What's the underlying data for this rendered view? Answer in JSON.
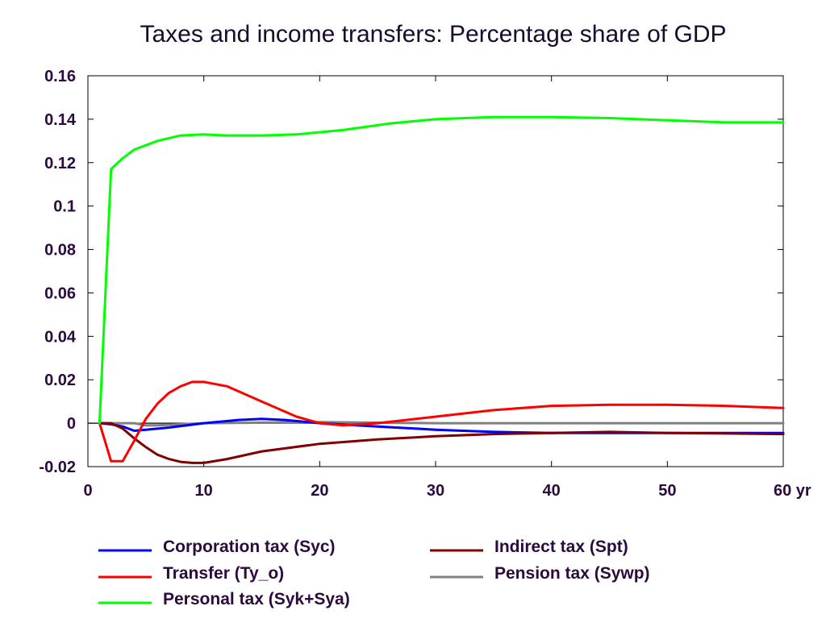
{
  "chart_data": {
    "type": "line",
    "title": "Taxes and income transfers: Percentage share of GDP",
    "xlabel": "",
    "ylabel": "",
    "x_unit_label": "yr",
    "xlim": [
      0,
      60
    ],
    "ylim": [
      -0.02,
      0.16
    ],
    "x_ticks": [
      0,
      10,
      20,
      30,
      40,
      50,
      60
    ],
    "x_tick_labels": [
      "0",
      "10",
      "20",
      "30",
      "40",
      "50",
      "60 yr"
    ],
    "y_ticks": [
      -0.02,
      0,
      0.02,
      0.04,
      0.06,
      0.08,
      0.1,
      0.12,
      0.14,
      0.16
    ],
    "y_tick_labels": [
      "-0.02",
      "0",
      "0.02",
      "0.04",
      "0.06",
      "0.08",
      "0.1",
      "0.12",
      "0.14",
      "0.16"
    ],
    "grid": false,
    "legend_position": "bottom",
    "zero_line": true,
    "series": [
      {
        "name": "Corporation tax (Syc)",
        "color": "#0000ff",
        "points": [
          [
            1,
            0
          ],
          [
            2,
            -0.0005
          ],
          [
            3,
            -0.0015
          ],
          [
            4,
            -0.0035
          ],
          [
            5,
            -0.003
          ],
          [
            7,
            -0.002
          ],
          [
            10,
            0
          ],
          [
            13,
            0.0015
          ],
          [
            15,
            0.002
          ],
          [
            17,
            0.0015
          ],
          [
            20,
            0
          ],
          [
            25,
            -0.0015
          ],
          [
            30,
            -0.003
          ],
          [
            35,
            -0.004
          ],
          [
            40,
            -0.0045
          ],
          [
            50,
            -0.0045
          ],
          [
            60,
            -0.0045
          ]
        ]
      },
      {
        "name": "Transfer (Ty_o)",
        "color": "#ff0000",
        "points": [
          [
            1,
            0
          ],
          [
            2,
            -0.0175
          ],
          [
            3,
            -0.0175
          ],
          [
            4,
            -0.008
          ],
          [
            5,
            0.002
          ],
          [
            6,
            0.009
          ],
          [
            7,
            0.014
          ],
          [
            8,
            0.017
          ],
          [
            9,
            0.019
          ],
          [
            10,
            0.019
          ],
          [
            12,
            0.017
          ],
          [
            15,
            0.01
          ],
          [
            18,
            0.003
          ],
          [
            20,
            0
          ],
          [
            22,
            -0.001
          ],
          [
            25,
            0
          ],
          [
            30,
            0.003
          ],
          [
            35,
            0.006
          ],
          [
            40,
            0.008
          ],
          [
            45,
            0.0085
          ],
          [
            50,
            0.0085
          ],
          [
            55,
            0.008
          ],
          [
            60,
            0.007
          ]
        ]
      },
      {
        "name": "Personal tax (Syk+Sya)",
        "color": "#00ff00",
        "points": [
          [
            1,
            0
          ],
          [
            2,
            0.117
          ],
          [
            3,
            0.122
          ],
          [
            4,
            0.126
          ],
          [
            6,
            0.13
          ],
          [
            8,
            0.1325
          ],
          [
            10,
            0.133
          ],
          [
            12,
            0.1325
          ],
          [
            15,
            0.1325
          ],
          [
            18,
            0.133
          ],
          [
            22,
            0.135
          ],
          [
            26,
            0.138
          ],
          [
            30,
            0.14
          ],
          [
            35,
            0.141
          ],
          [
            40,
            0.141
          ],
          [
            45,
            0.1405
          ],
          [
            50,
            0.1395
          ],
          [
            55,
            0.1385
          ],
          [
            60,
            0.1385
          ]
        ]
      },
      {
        "name": "Indirect tax (Spt)",
        "color": "#800000",
        "points": [
          [
            1,
            0
          ],
          [
            2,
            0
          ],
          [
            3,
            -0.0025
          ],
          [
            4,
            -0.007
          ],
          [
            5,
            -0.011
          ],
          [
            6,
            -0.0145
          ],
          [
            7,
            -0.0165
          ],
          [
            8,
            -0.0178
          ],
          [
            9,
            -0.0183
          ],
          [
            10,
            -0.0183
          ],
          [
            12,
            -0.0165
          ],
          [
            15,
            -0.013
          ],
          [
            20,
            -0.0095
          ],
          [
            25,
            -0.0075
          ],
          [
            30,
            -0.006
          ],
          [
            35,
            -0.005
          ],
          [
            40,
            -0.0045
          ],
          [
            45,
            -0.004
          ],
          [
            50,
            -0.0045
          ],
          [
            60,
            -0.005
          ]
        ]
      },
      {
        "name": "Pension tax (Sywp)",
        "color": "#808080",
        "points": [
          [
            1,
            0
          ],
          [
            2,
            0
          ],
          [
            4,
            0
          ],
          [
            5,
            -0.001
          ],
          [
            6,
            -0.001
          ],
          [
            10,
            0
          ],
          [
            20,
            0.0005
          ],
          [
            30,
            0
          ],
          [
            40,
            0
          ],
          [
            50,
            0
          ],
          [
            60,
            0
          ]
        ]
      }
    ]
  }
}
